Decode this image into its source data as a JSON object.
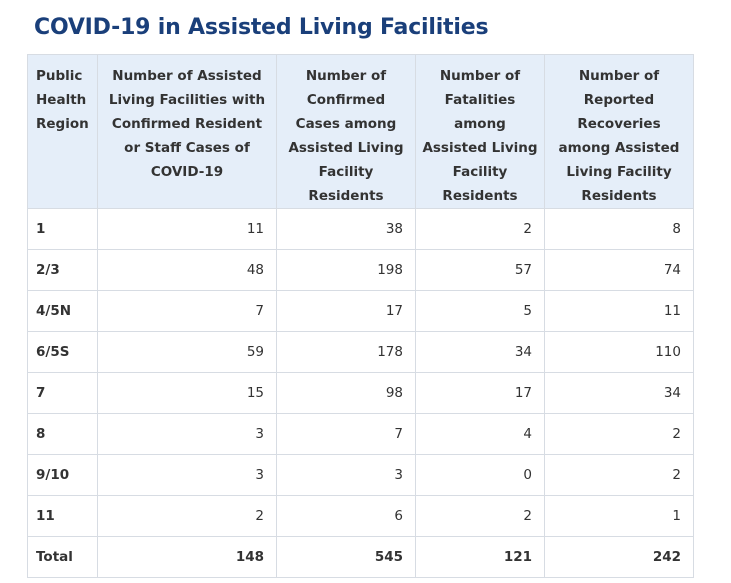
{
  "title": "COVID-19 in Assisted Living Facilities",
  "colors": {
    "title": "#1a3f7a",
    "header_background": "#e5eef9",
    "border": "#d7dce3",
    "text": "#333333"
  },
  "table": {
    "headers": [
      "Public Health Region",
      "Number of Assisted Living Facilities with Confirmed Resident or Staff Cases of COVID-19",
      "Number of Confirmed Cases among Assisted Living Facility Residents",
      "Number of Fatalities among Assisted Living Facility Residents",
      "Number of Reported Recoveries among Assisted Living Facility Residents"
    ],
    "rows": [
      [
        "1",
        "11",
        "38",
        "2",
        "8"
      ],
      [
        "2/3",
        "48",
        "198",
        "57",
        "74"
      ],
      [
        "4/5N",
        "7",
        "17",
        "5",
        "11"
      ],
      [
        "6/5S",
        "59",
        "178",
        "34",
        "110"
      ],
      [
        "7",
        "15",
        "98",
        "17",
        "34"
      ],
      [
        "8",
        "3",
        "7",
        "4",
        "2"
      ],
      [
        "9/10",
        "3",
        "3",
        "0",
        "2"
      ],
      [
        "11",
        "2",
        "6",
        "2",
        "1"
      ]
    ],
    "total": [
      "Total",
      "148",
      "545",
      "121",
      "242"
    ]
  }
}
